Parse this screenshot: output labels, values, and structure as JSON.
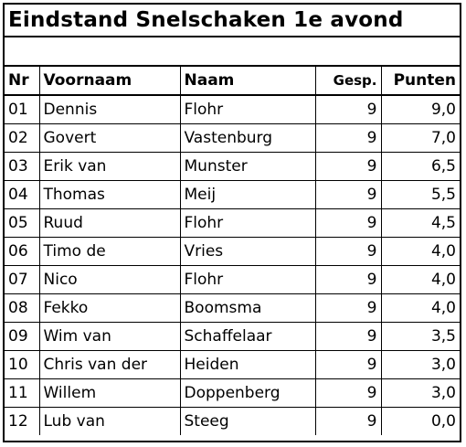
{
  "title": "Eindstand Snelschaken 1e avond",
  "subtitle": "",
  "columns": {
    "nr": "Nr",
    "voornaam": "Voornaam",
    "naam": "Naam",
    "gespeeld": "Gesp.",
    "punten": "Punten"
  },
  "rows": [
    {
      "nr": "01",
      "voornaam": "Dennis",
      "naam": "Flohr",
      "gespeeld": "9",
      "punten": "9,0"
    },
    {
      "nr": "02",
      "voornaam": "Govert",
      "naam": "Vastenburg",
      "gespeeld": "9",
      "punten": "7,0"
    },
    {
      "nr": "03",
      "voornaam": "Erik van",
      "naam": "Munster",
      "gespeeld": "9",
      "punten": "6,5"
    },
    {
      "nr": "04",
      "voornaam": "Thomas",
      "naam": "Meij",
      "gespeeld": "9",
      "punten": "5,5"
    },
    {
      "nr": "05",
      "voornaam": "Ruud",
      "naam": "Flohr",
      "gespeeld": "9",
      "punten": "4,5"
    },
    {
      "nr": "06",
      "voornaam": "Timo de",
      "naam": "Vries",
      "gespeeld": "9",
      "punten": "4,0"
    },
    {
      "nr": "07",
      "voornaam": "Nico",
      "naam": "Flohr",
      "gespeeld": "9",
      "punten": "4,0"
    },
    {
      "nr": "08",
      "voornaam": "Fekko",
      "naam": "Boomsma",
      "gespeeld": "9",
      "punten": "4,0"
    },
    {
      "nr": "09",
      "voornaam": "Wim van",
      "naam": "Schaffelaar",
      "gespeeld": "9",
      "punten": "3,5"
    },
    {
      "nr": "10",
      "voornaam": "Chris van der",
      "naam": "Heiden",
      "gespeeld": "9",
      "punten": "3,0"
    },
    {
      "nr": "11",
      "voornaam": "Willem",
      "naam": "Doppenberg",
      "gespeeld": "9",
      "punten": "3,0"
    },
    {
      "nr": "12",
      "voornaam": "Lub van",
      "naam": "Steeg",
      "gespeeld": "9",
      "punten": "0,0"
    }
  ]
}
